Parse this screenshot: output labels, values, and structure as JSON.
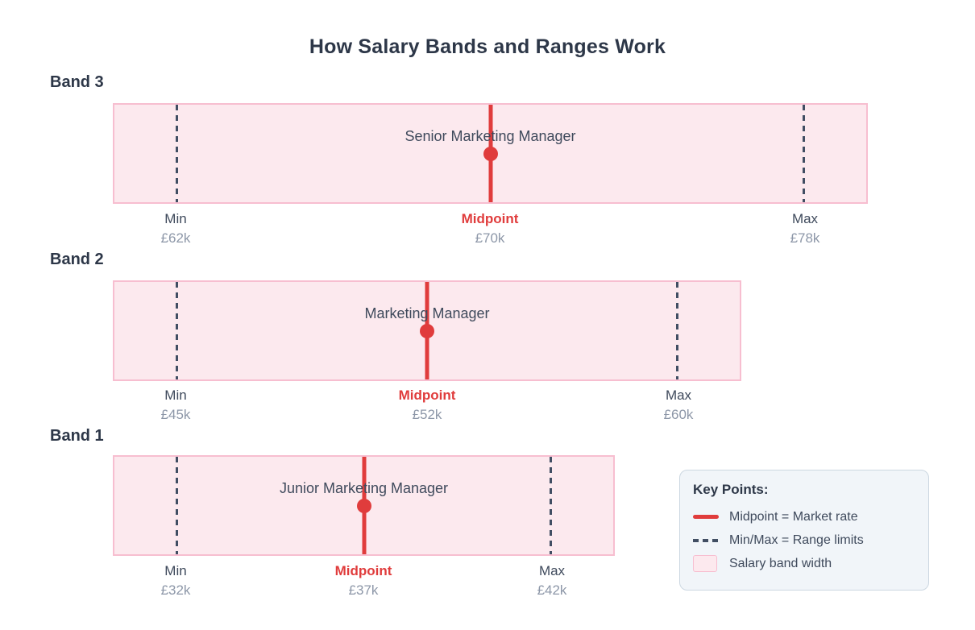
{
  "title": "How Salary Bands and Ranges Work",
  "colors": {
    "band_fill": "#fce9ee",
    "band_border": "#f7bed0",
    "midpoint_red": "#e03c3c",
    "range_dash": "#414e63",
    "heading_text": "#2d3748",
    "label_text": "#3f4a5c",
    "value_text": "#8d97a8",
    "legend_bg": "#f1f5f9",
    "legend_border": "#ccd7e1"
  },
  "bands": [
    {
      "name": "Band 3",
      "role": "Senior Marketing Manager",
      "min_label": "Min",
      "min_value": "£62k",
      "midpoint_label": "Midpoint",
      "midpoint_value": "£70k",
      "max_label": "Max",
      "max_value": "£78k"
    },
    {
      "name": "Band 2",
      "role": "Marketing Manager",
      "min_label": "Min",
      "min_value": "£45k",
      "midpoint_label": "Midpoint",
      "midpoint_value": "£52k",
      "max_label": "Max",
      "max_value": "£60k"
    },
    {
      "name": "Band 1",
      "role": "Junior Marketing Manager",
      "min_label": "Min",
      "min_value": "£32k",
      "midpoint_label": "Midpoint",
      "midpoint_value": "£37k",
      "max_label": "Max",
      "max_value": "£42k"
    }
  ],
  "legend": {
    "title": "Key Points:",
    "items": [
      {
        "swatch": "midpoint-solid-line",
        "label": "Midpoint = Market rate"
      },
      {
        "swatch": "minmax-dashed-line",
        "label": "Min/Max = Range limits"
      },
      {
        "swatch": "salary-band-fill",
        "label": "Salary band width"
      }
    ]
  },
  "chart_data": {
    "type": "bar",
    "title": "How Salary Bands and Ranges Work",
    "categories": [
      "Band 3",
      "Band 2",
      "Band 1"
    ],
    "series": [
      {
        "name": "Min",
        "values": [
          62,
          45,
          32
        ]
      },
      {
        "name": "Midpoint",
        "values": [
          70,
          52,
          37
        ]
      },
      {
        "name": "Max",
        "values": [
          78,
          60,
          42
        ]
      }
    ],
    "roles": [
      "Senior Marketing Manager",
      "Marketing Manager",
      "Junior Marketing Manager"
    ],
    "units": "£k (GBP thousands)",
    "orientation": "horizontal-range-bands",
    "grid": false,
    "legend_position": "bottom-right",
    "annotations": [
      "Midpoint = Market rate",
      "Min/Max = Range limits",
      "Salary band width"
    ]
  }
}
